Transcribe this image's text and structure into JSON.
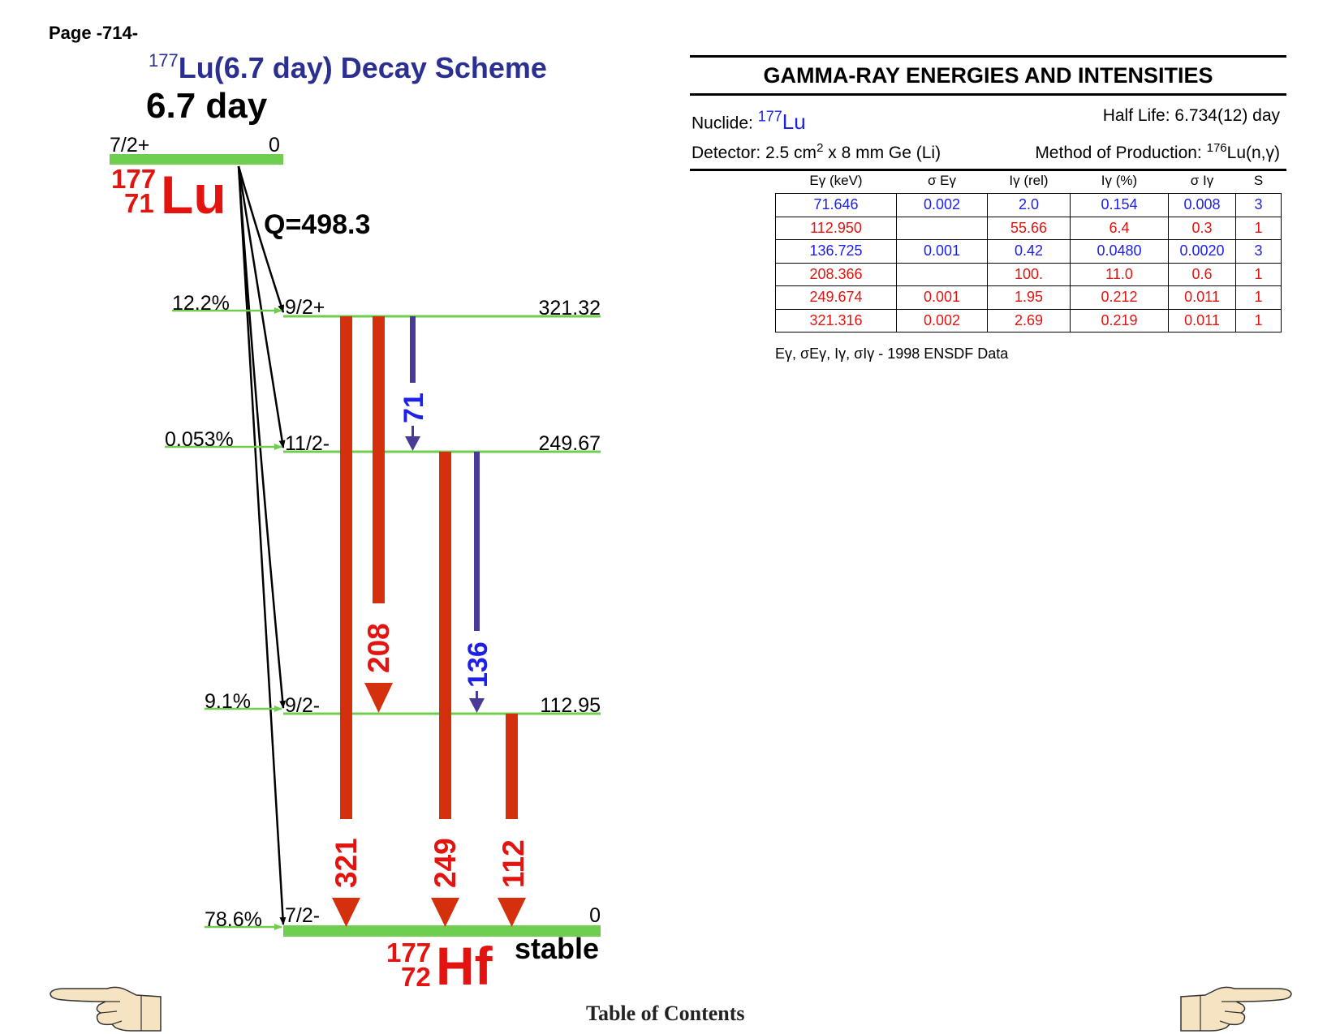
{
  "page_label": "Page -714-",
  "scheme": {
    "title_mass": "177",
    "title_rest": "Lu(6.7 day) Decay Scheme",
    "parent_halflife": "6.7 day",
    "parent": {
      "spin": "7/2+",
      "energy": "0",
      "mass": "177",
      "z": "71",
      "symbol": "Lu"
    },
    "q_value": "Q=498.3",
    "levels": [
      {
        "spin": "9/2+",
        "energy": "321.32",
        "feeding": "12.2%"
      },
      {
        "spin": "11/2-",
        "energy": "249.67",
        "feeding": "0.053%"
      },
      {
        "spin": "9/2-",
        "energy": "112.95",
        "feeding": "9.1%"
      },
      {
        "spin": "7/2-",
        "energy": "0",
        "feeding": "78.6%"
      }
    ],
    "daughter": {
      "mass": "177",
      "z": "72",
      "symbol": "Hf",
      "status": "stable"
    },
    "transitions": [
      {
        "label": "321",
        "color": "#d4300e"
      },
      {
        "label": "208",
        "color": "#d4300e"
      },
      {
        "label": "71",
        "color": "#4a3996"
      },
      {
        "label": "249",
        "color": "#d4300e"
      },
      {
        "label": "136",
        "color": "#4a3996"
      },
      {
        "label": "112",
        "color": "#d4300e"
      }
    ],
    "level_color": "#6fcd4f"
  },
  "panel": {
    "title": "GAMMA-RAY ENERGIES AND INTENSITIES",
    "nuclide_label": "Nuclide: ",
    "nuclide_mass": "177",
    "nuclide_symbol": "Lu",
    "half_life": "Half Life: 6.734(12) day",
    "detector_pre": "Detector: 2.5 cm",
    "detector_sup": "2",
    "detector_post": " x 8 mm Ge (Li)",
    "production_pre": "Method of Production: ",
    "production_sup": "176",
    "production_post": "Lu(n,γ)",
    "table": {
      "headers": [
        "Eγ (keV)",
        "σ Eγ",
        "Iγ (rel)",
        "Iγ (%)",
        "σ Iγ",
        "S"
      ],
      "rows": [
        {
          "color": "#1d20e6",
          "cells": [
            "71.646",
            "0.002",
            "2.0",
            "0.154",
            "0.008",
            "3"
          ]
        },
        {
          "color": "#e3140f",
          "cells": [
            "112.950",
            "",
            "55.66",
            "6.4",
            "0.3",
            "1"
          ]
        },
        {
          "color": "#1d20e6",
          "cells": [
            "136.725",
            "0.001",
            "0.42",
            "0.0480",
            "0.0020",
            "3"
          ]
        },
        {
          "color": "#e3140f",
          "cells": [
            "208.366",
            "",
            "100.",
            "11.0",
            "0.6",
            "1"
          ]
        },
        {
          "color": "#e3140f",
          "cells": [
            "249.674",
            "0.001",
            "1.95",
            "0.212",
            "0.011",
            "1"
          ]
        },
        {
          "color": "#e3140f",
          "cells": [
            "321.316",
            "0.002",
            "2.69",
            "0.219",
            "0.011",
            "1"
          ]
        }
      ]
    },
    "footnote": "Eγ, σEγ, Iγ, σIγ - 1998 ENSDF Data"
  },
  "toc_label": "Table of Contents"
}
